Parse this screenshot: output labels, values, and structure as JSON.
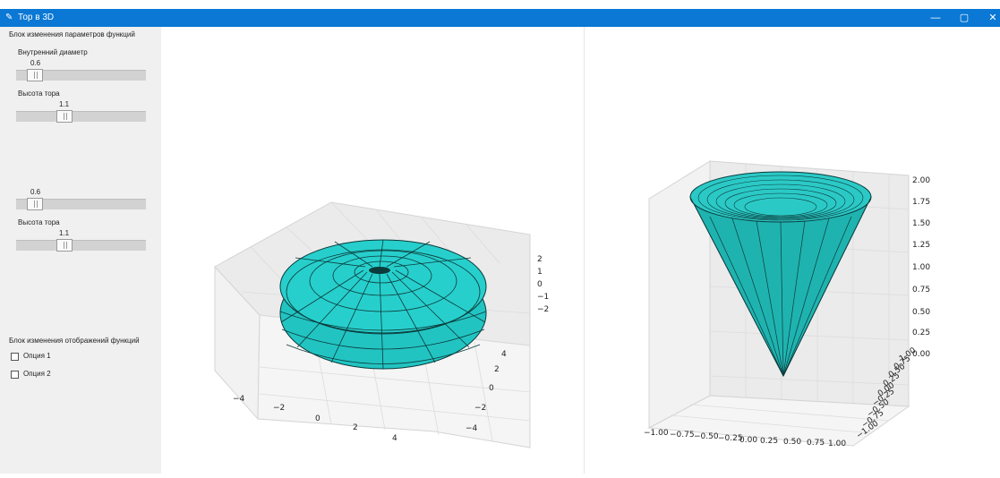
{
  "window": {
    "title": "Тор в 3D",
    "controls": {
      "minimize": "—",
      "maximize": "▢",
      "close": "✕"
    },
    "accent": "#0a78d4"
  },
  "panel": {
    "params_header": "Блок изменения параметров функций",
    "group1": {
      "slider1": {
        "label": "Внутренний диаметр",
        "value": "0.6"
      },
      "slider2": {
        "label": "Высота тора",
        "value": "1.1"
      }
    },
    "group2": {
      "slider1": {
        "value": "0.6"
      },
      "slider2": {
        "label": "Высота тора",
        "value": "1.1"
      }
    },
    "display_header": "Блок изменения отображений функций",
    "options": [
      {
        "label": "Опция 1",
        "checked": false
      },
      {
        "label": "Опция 2",
        "checked": false
      }
    ]
  },
  "torus_plot": {
    "surface_color": "#22c4c2",
    "x_ticks": [
      "−4",
      "−2",
      "0",
      "2",
      "4"
    ],
    "y_ticks": [
      "4",
      "2",
      "0",
      "−2",
      "−4"
    ],
    "z_ticks": [
      "2",
      "1",
      "0",
      "−1",
      "−2"
    ]
  },
  "cone_plot": {
    "surface_color": "#1fb3b0",
    "x_ticks": [
      "−1.00",
      "−0.75",
      "−0.50",
      "−0.25",
      "0.00",
      "0.25",
      "0.50",
      "0.75",
      "1.00"
    ],
    "y_ticks": [
      "−1.00",
      "−0.75",
      "−0.50",
      "−0.25",
      "0.00",
      "0.25",
      "0.50",
      "0.75",
      "1.00"
    ],
    "z_ticks": [
      "2.00",
      "1.75",
      "1.50",
      "1.25",
      "1.00",
      "0.75",
      "0.50",
      "0.25",
      "0.00"
    ]
  }
}
